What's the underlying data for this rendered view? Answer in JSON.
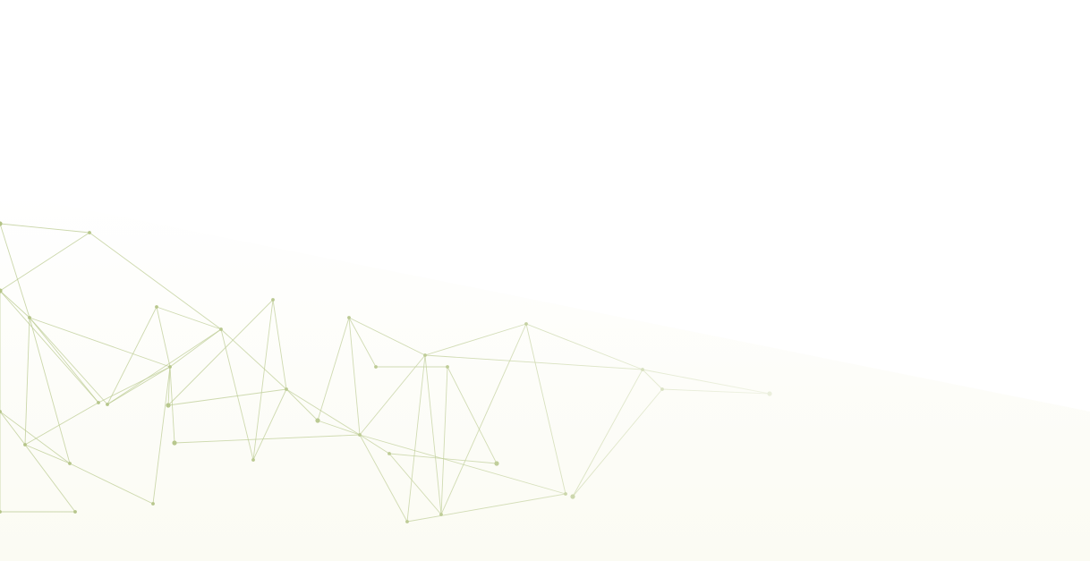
{
  "background": {
    "base_color": "#ffffff",
    "mist_color": "#fbfbf5",
    "network_color": "#b9c98f",
    "node_color": "#b4c487",
    "decoration": "network-mesh-pattern"
  }
}
